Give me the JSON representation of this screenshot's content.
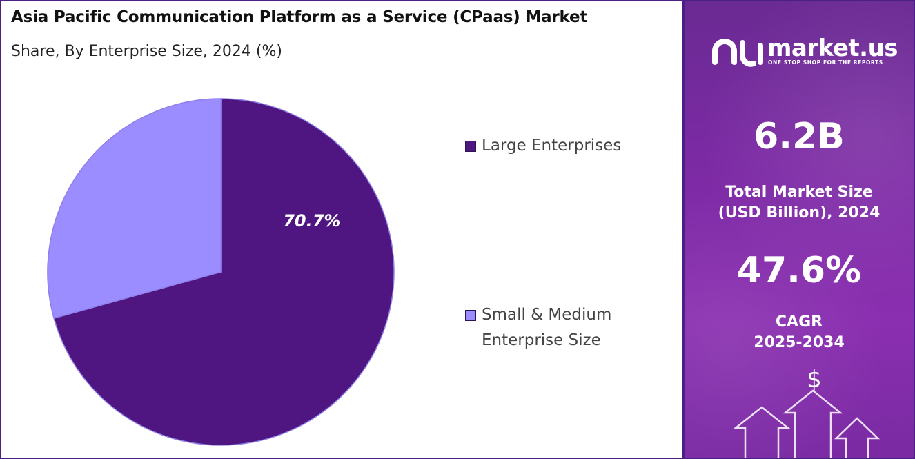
{
  "header": {
    "title": "Asia Pacific Communication Platform as a Service (CPaas) Market",
    "subtitle": "Share, By Enterprise Size, 2024 (%)"
  },
  "chart_data": {
    "type": "pie",
    "categories": [
      "Large Enterprises",
      "Small & Medium Enterprise Size"
    ],
    "values": [
      70.7,
      29.3
    ],
    "data_labels": [
      "70.7%",
      ""
    ],
    "colors": [
      "#4f1681",
      "#9b8cff"
    ],
    "legend": {
      "placement": "right",
      "entries": [
        {
          "lines": [
            "Large Enterprises"
          ],
          "color": "#4f1681"
        },
        {
          "lines": [
            "Small & Medium",
            "Enterprise Size"
          ],
          "color": "#9b8cff"
        }
      ]
    }
  },
  "sidebar": {
    "brand": "market.us",
    "tagline": "ONE STOP SHOP FOR THE REPORTS",
    "market_size_value": "6.2B",
    "market_size_label_line1": "Total Market Size",
    "market_size_label_line2": "(USD Billion), 2024",
    "cagr_value": "47.6%",
    "cagr_label_line1": "CAGR",
    "cagr_label_line2": "2025-2034",
    "currency_symbol": "$",
    "accent_color": "#7e2aa6"
  }
}
